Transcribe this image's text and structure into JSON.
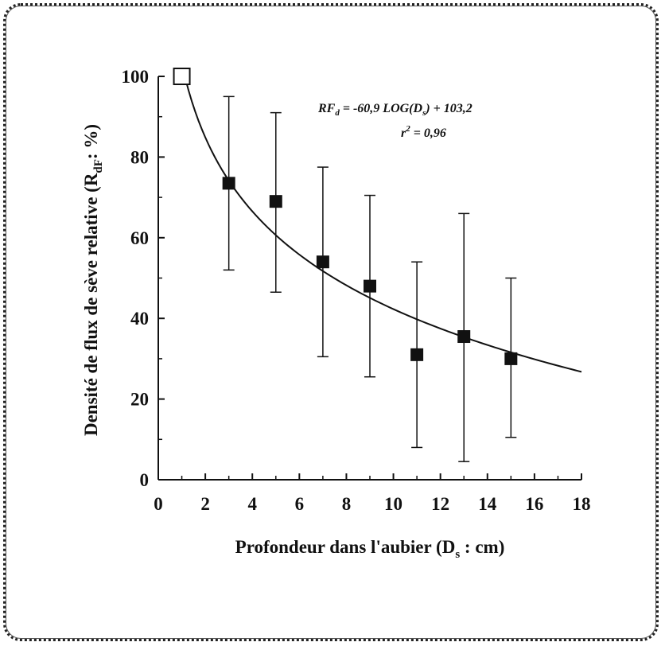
{
  "chart_data": {
    "type": "scatter",
    "xlabel": {
      "main": "Profondeur dans l'aubier (D",
      "sub": "s",
      "tail": " : cm)"
    },
    "ylabel": {
      "main": "Densité de flux de sève relative (R",
      "sub": "dF",
      "tail": ": %)"
    },
    "xlim": [
      0,
      18
    ],
    "ylim": [
      0,
      100
    ],
    "xticks": [
      0,
      2,
      4,
      6,
      8,
      10,
      12,
      14,
      16,
      18
    ],
    "yticks": [
      0,
      20,
      40,
      60,
      80,
      100
    ],
    "grid": false,
    "points": [
      {
        "x": 1,
        "y": 100,
        "yerr_low": 100,
        "yerr_high": 100,
        "marker": "open-square"
      },
      {
        "x": 3,
        "y": 73.5,
        "yerr_low": 52,
        "yerr_high": 95,
        "marker": "filled-square"
      },
      {
        "x": 5,
        "y": 69,
        "yerr_low": 46.5,
        "yerr_high": 91,
        "marker": "filled-square"
      },
      {
        "x": 7,
        "y": 54,
        "yerr_low": 30.5,
        "yerr_high": 77.5,
        "marker": "filled-square"
      },
      {
        "x": 9,
        "y": 48,
        "yerr_low": 25.5,
        "yerr_high": 70.5,
        "marker": "filled-square"
      },
      {
        "x": 11,
        "y": 31,
        "yerr_low": 8,
        "yerr_high": 54,
        "marker": "filled-square"
      },
      {
        "x": 13,
        "y": 35.5,
        "yerr_low": 4.5,
        "yerr_high": 66,
        "marker": "filled-square"
      },
      {
        "x": 15,
        "y": 30,
        "yerr_low": 10.5,
        "yerr_high": 50,
        "marker": "filled-square"
      }
    ],
    "fit": {
      "slope": -60.9,
      "intercept": 103.2,
      "log_base": 10,
      "x_from": 1,
      "x_to": 18
    },
    "annotation": {
      "line1_prefix": "RF",
      "line1_sub": "d",
      "line1_rest": " =  -60,9 LOG(D",
      "line1_sub2": "s",
      "line1_end": ") + 103,2",
      "line2_prefix": "r",
      "line2_sup": "2",
      "line2_rest": " = 0,96"
    },
    "colors": {
      "ink": "#111111",
      "open_marker_fill": "#ffffff"
    }
  }
}
